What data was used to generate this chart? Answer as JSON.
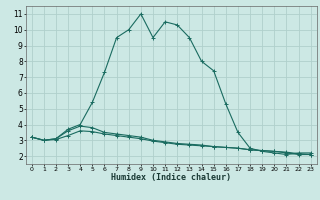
{
  "xlabel": "Humidex (Indice chaleur)",
  "xlim": [
    -0.5,
    23.5
  ],
  "ylim": [
    1.5,
    11.5
  ],
  "yticks": [
    2,
    3,
    4,
    5,
    6,
    7,
    8,
    9,
    10,
    11
  ],
  "xticks": [
    0,
    1,
    2,
    3,
    4,
    5,
    6,
    7,
    8,
    9,
    10,
    11,
    12,
    13,
    14,
    15,
    16,
    17,
    18,
    19,
    20,
    21,
    22,
    23
  ],
  "bg_color": "#cce8e4",
  "grid_color": "#b0d0cc",
  "line_color": "#1a6b60",
  "lines": [
    {
      "x": [
        0,
        1,
        2,
        3,
        4,
        5,
        6,
        7,
        8,
        9,
        10,
        11,
        12,
        13,
        14,
        15,
        16,
        17,
        18,
        19,
        20,
        21,
        22,
        23
      ],
      "y": [
        3.2,
        3.0,
        3.1,
        3.7,
        4.0,
        5.4,
        7.3,
        9.5,
        10.0,
        11.0,
        9.5,
        10.5,
        10.3,
        9.5,
        8.0,
        7.4,
        5.3,
        3.5,
        2.5,
        2.3,
        2.2,
        2.1,
        2.2,
        2.2
      ]
    },
    {
      "x": [
        0,
        1,
        2,
        3,
        4,
        5,
        6,
        7,
        8,
        9,
        10,
        11,
        12,
        13,
        14,
        15,
        16,
        17,
        18,
        19,
        20,
        21,
        22,
        23
      ],
      "y": [
        3.2,
        3.0,
        3.1,
        3.6,
        3.9,
        3.8,
        3.5,
        3.4,
        3.3,
        3.2,
        3.0,
        2.9,
        2.8,
        2.75,
        2.7,
        2.6,
        2.55,
        2.5,
        2.4,
        2.35,
        2.3,
        2.25,
        2.15,
        2.1
      ]
    },
    {
      "x": [
        0,
        1,
        2,
        3,
        4,
        5,
        6,
        7,
        8,
        9,
        10,
        11,
        12,
        13,
        14,
        15,
        16,
        17,
        18,
        19,
        20,
        21,
        22,
        23
      ],
      "y": [
        3.2,
        3.0,
        3.05,
        3.3,
        3.6,
        3.55,
        3.4,
        3.3,
        3.2,
        3.1,
        2.95,
        2.85,
        2.75,
        2.7,
        2.65,
        2.6,
        2.55,
        2.5,
        2.4,
        2.35,
        2.3,
        2.2,
        2.1,
        2.1
      ]
    }
  ]
}
